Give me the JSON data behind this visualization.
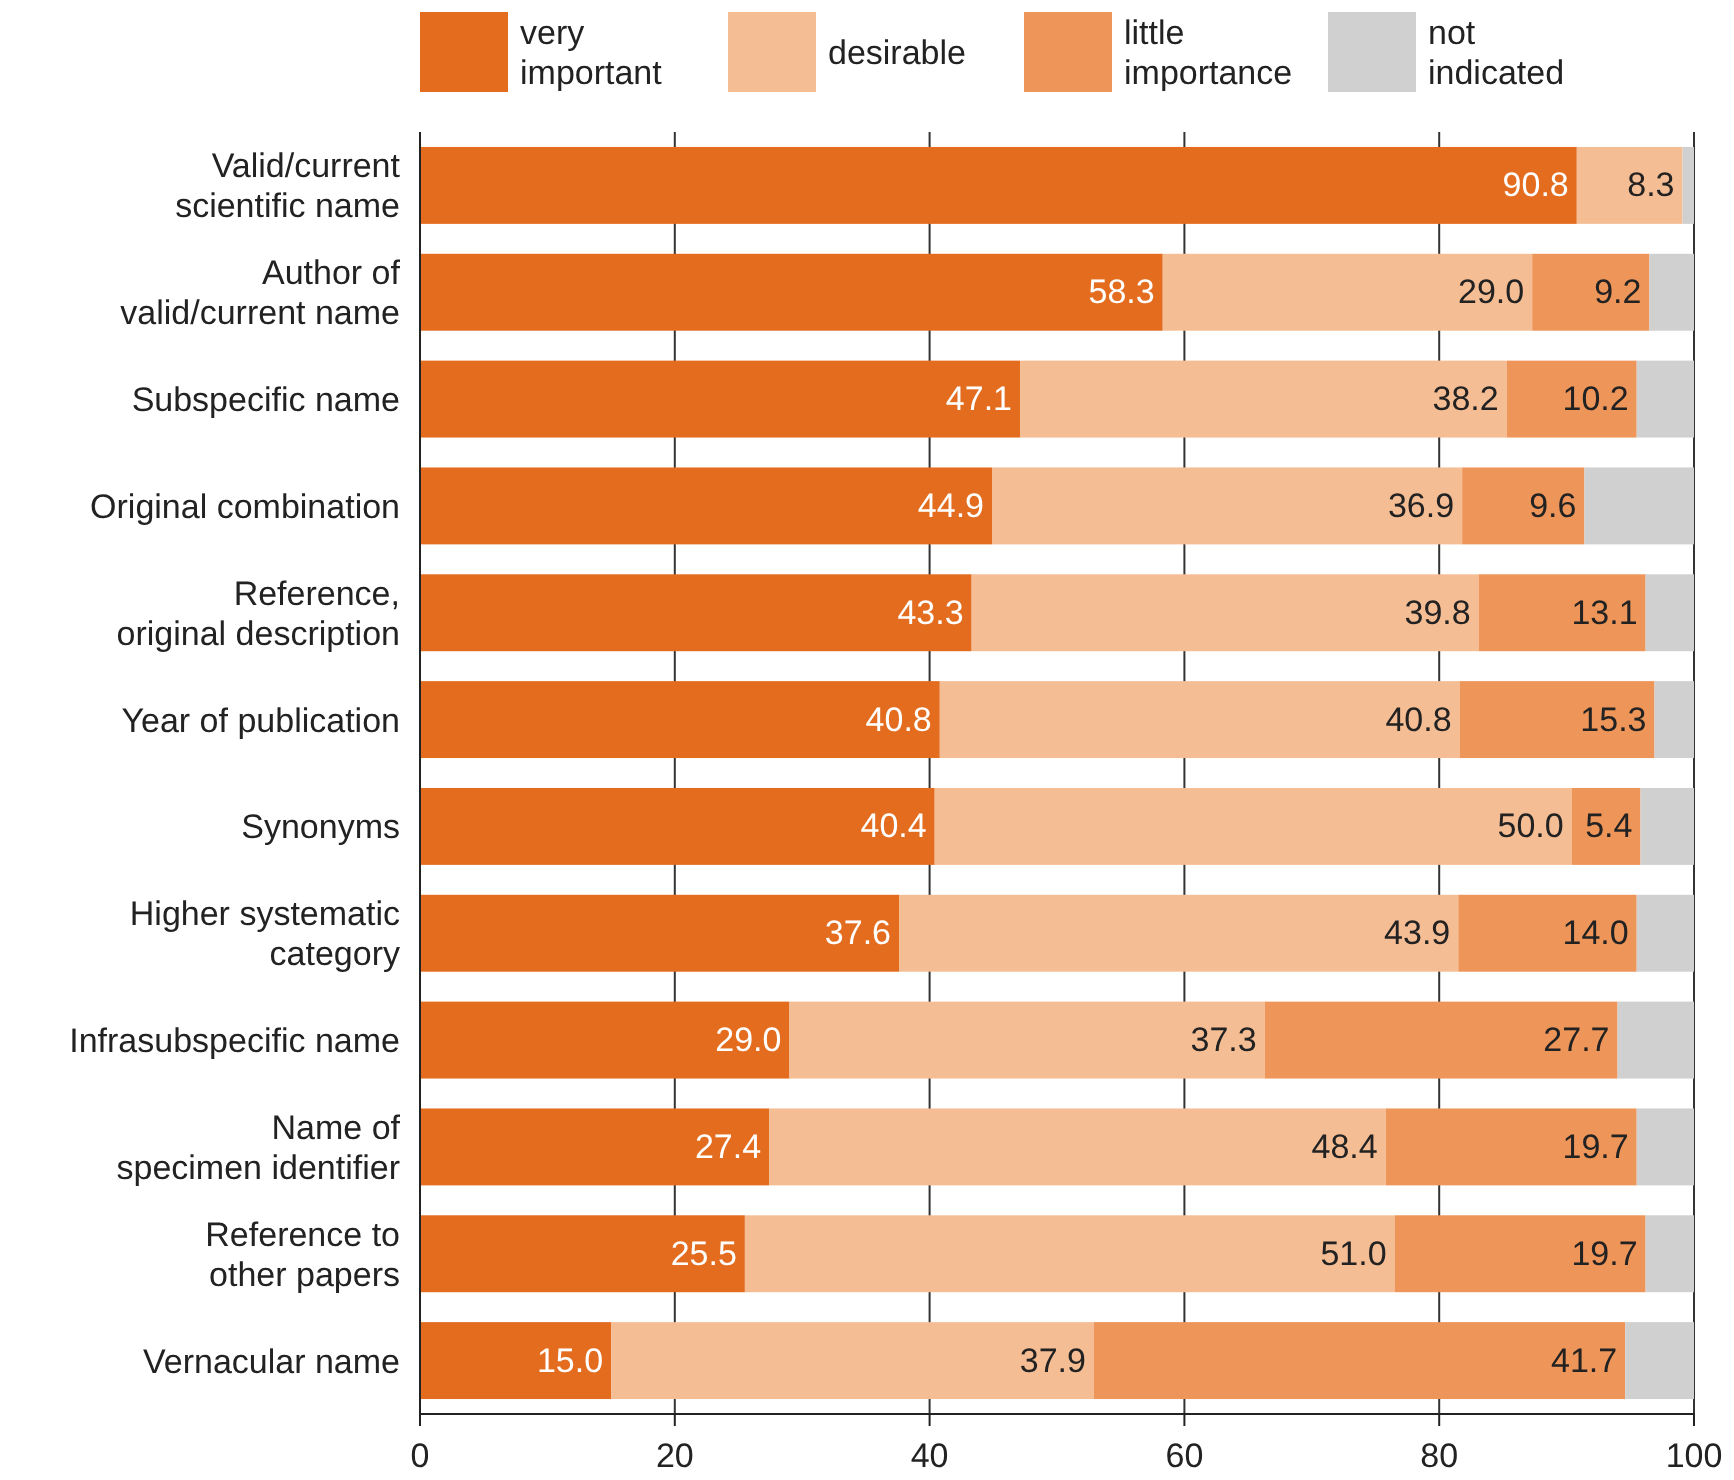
{
  "chart_data": {
    "type": "bar",
    "orientation": "horizontal",
    "stacked": true,
    "categories": [
      "Valid/current\nscientific name",
      "Author of\nvalid/current name",
      "Subspecific name",
      "Original combination",
      "Reference,\noriginal description",
      "Year of publication",
      "Synonyms",
      "Higher systematic\ncategory",
      "Infrasubspecific name",
      "Name of\nspecimen identifier",
      "Reference to\nother papers",
      "Vernacular name"
    ],
    "series": [
      {
        "name": "very important",
        "color": "#e46c1f",
        "values": [
          90.8,
          58.3,
          47.1,
          44.9,
          43.3,
          40.8,
          40.4,
          37.6,
          29.0,
          27.4,
          25.5,
          15.0
        ],
        "value_labels": [
          "90.8",
          "58.3",
          "47.1",
          "44.9",
          "43.3",
          "40.8",
          "40.4",
          "37.6",
          "29.0",
          "27.4",
          "25.5",
          "15.0"
        ]
      },
      {
        "name": "desirable",
        "color": "#f5bd94",
        "values": [
          8.3,
          29.0,
          38.2,
          36.9,
          39.8,
          40.8,
          50.0,
          43.9,
          37.3,
          48.4,
          51.0,
          37.9
        ],
        "value_labels": [
          "8.3",
          "29.0",
          "38.2",
          "36.9",
          "39.8",
          "40.8",
          "50.0",
          "43.9",
          "37.3",
          "48.4",
          "51.0",
          "37.9"
        ]
      },
      {
        "name": "little importance",
        "color": "#ee9559",
        "values": [
          0,
          9.2,
          10.2,
          9.6,
          13.1,
          15.3,
          5.4,
          14.0,
          27.7,
          19.7,
          19.7,
          41.7
        ],
        "value_labels": [
          null,
          "9.2",
          "10.2",
          "9.6",
          "13.1",
          "15.3",
          "5.4",
          "14.0",
          "27.7",
          "19.7",
          "19.7",
          "41.7"
        ]
      },
      {
        "name": "not indicated",
        "color": "#d0d0d0",
        "values": [
          0.9,
          3.5,
          4.5,
          8.6,
          3.8,
          3.1,
          4.2,
          4.5,
          6.0,
          4.5,
          3.8,
          5.4
        ]
      }
    ],
    "xlim": [
      0,
      100
    ],
    "xticks": [
      0,
      20,
      40,
      60,
      80,
      100
    ],
    "grid": "x",
    "legend": "top"
  }
}
